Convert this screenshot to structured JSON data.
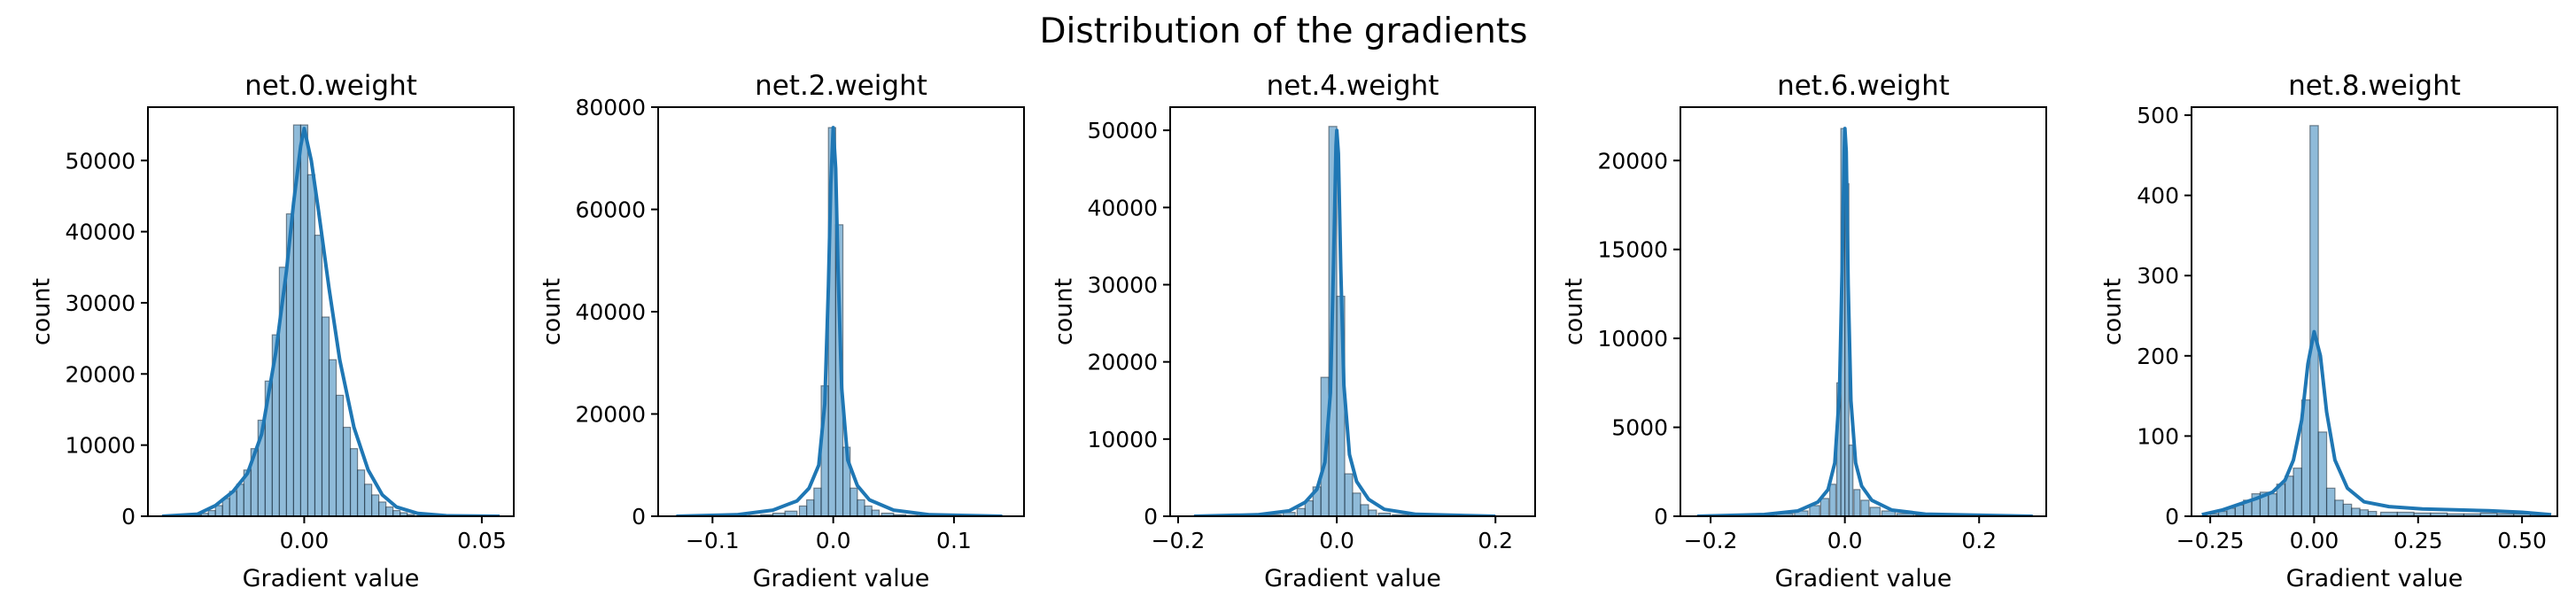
{
  "suptitle": "Distribution of the gradients",
  "chart_data": [
    {
      "type": "histogram",
      "title": "net.0.weight",
      "xlabel": "Gradient value",
      "ylabel": "count",
      "xlim": [
        -0.044,
        0.059
      ],
      "ylim": [
        0,
        57500
      ],
      "xticks": [
        0.0,
        0.05
      ],
      "xtick_labels": [
        "0.00",
        "0.05"
      ],
      "yticks": [
        0,
        10000,
        20000,
        30000,
        40000,
        50000
      ],
      "ytick_labels": [
        "0",
        "10000",
        "20000",
        "30000",
        "40000",
        "50000"
      ],
      "bins": {
        "centers": [
          -0.03,
          -0.028,
          -0.026,
          -0.024,
          -0.022,
          -0.02,
          -0.018,
          -0.016,
          -0.014,
          -0.012,
          -0.01,
          -0.008,
          -0.006,
          -0.004,
          -0.002,
          0.0,
          0.002,
          0.004,
          0.006,
          0.008,
          0.01,
          0.012,
          0.014,
          0.016,
          0.018,
          0.02,
          0.022,
          0.024,
          0.026,
          0.028,
          0.03,
          0.034,
          0.04
        ],
        "counts": [
          200,
          400,
          800,
          1500,
          2500,
          3500,
          4500,
          6500,
          9500,
          13500,
          19000,
          25500,
          35000,
          42500,
          55000,
          55000,
          48000,
          39500,
          28000,
          22000,
          17000,
          12500,
          9500,
          6500,
          4500,
          3000,
          2000,
          1300,
          800,
          500,
          250,
          100,
          40
        ]
      },
      "kde": {
        "x": [
          -0.04,
          -0.03,
          -0.025,
          -0.02,
          -0.016,
          -0.012,
          -0.008,
          -0.005,
          -0.003,
          -0.001,
          0.0,
          0.002,
          0.004,
          0.007,
          0.01,
          0.014,
          0.018,
          0.022,
          0.026,
          0.032,
          0.04,
          0.055
        ],
        "y": [
          0,
          300,
          1500,
          3500,
          6000,
          11500,
          23000,
          34500,
          44000,
          52000,
          54500,
          50000,
          43000,
          32000,
          22000,
          12500,
          6500,
          3000,
          1300,
          400,
          80,
          0
        ]
      }
    },
    {
      "type": "histogram",
      "title": "net.2.weight",
      "xlabel": "Gradient value",
      "ylabel": "count",
      "xlim": [
        -0.145,
        0.158
      ],
      "ylim": [
        0,
        80000
      ],
      "xticks": [
        -0.1,
        0.0,
        0.1
      ],
      "xtick_labels": [
        "−0.1",
        "0.0",
        "0.1"
      ],
      "yticks": [
        0,
        20000,
        40000,
        60000,
        80000
      ],
      "ytick_labels": [
        "0",
        "20000",
        "40000",
        "60000",
        "80000"
      ],
      "bins": {
        "centers": [
          -0.065,
          -0.055,
          -0.045,
          -0.035,
          -0.025,
          -0.019,
          -0.013,
          -0.007,
          -0.001,
          0.005,
          0.011,
          0.017,
          0.023,
          0.029,
          0.035,
          0.045,
          0.055,
          0.065
        ],
        "counts": [
          150,
          300,
          600,
          1000,
          2000,
          3200,
          5500,
          25500,
          76000,
          57000,
          13500,
          5500,
          3200,
          2000,
          1200,
          600,
          300,
          150
        ]
      },
      "kde": {
        "x": [
          -0.13,
          -0.08,
          -0.05,
          -0.03,
          -0.02,
          -0.012,
          -0.007,
          -0.004,
          -0.002,
          0.0,
          0.002,
          0.004,
          0.007,
          0.012,
          0.02,
          0.03,
          0.05,
          0.08,
          0.14
        ],
        "y": [
          0,
          300,
          1200,
          3000,
          5500,
          10000,
          22000,
          45000,
          65000,
          76000,
          68000,
          48000,
          25000,
          11000,
          6000,
          3200,
          1200,
          300,
          0
        ]
      }
    },
    {
      "type": "histogram",
      "title": "net.4.weight",
      "xlabel": "Gradient value",
      "ylabel": "count",
      "xlim": [
        -0.21,
        0.25
      ],
      "ylim": [
        0,
        53000
      ],
      "xticks": [
        -0.2,
        0.0,
        0.2
      ],
      "xtick_labels": [
        "−0.2",
        "0.0",
        "0.2"
      ],
      "yticks": [
        0,
        10000,
        20000,
        30000,
        40000,
        50000
      ],
      "ytick_labels": [
        "0",
        "10000",
        "20000",
        "30000",
        "40000",
        "50000"
      ],
      "bins": {
        "centers": [
          -0.1,
          -0.08,
          -0.06,
          -0.045,
          -0.035,
          -0.025,
          -0.015,
          -0.005,
          0.005,
          0.015,
          0.025,
          0.035,
          0.045,
          0.06,
          0.08,
          0.1,
          0.13
        ],
        "counts": [
          100,
          200,
          500,
          1000,
          2000,
          3800,
          18000,
          50500,
          28500,
          5500,
          3000,
          1500,
          800,
          400,
          200,
          100,
          50
        ]
      },
      "kde": {
        "x": [
          -0.18,
          -0.1,
          -0.06,
          -0.04,
          -0.025,
          -0.015,
          -0.008,
          -0.004,
          -0.001,
          0.0,
          0.002,
          0.005,
          0.009,
          0.016,
          0.025,
          0.04,
          0.06,
          0.1,
          0.2
        ],
        "y": [
          0,
          200,
          700,
          1800,
          3500,
          7000,
          16000,
          33000,
          48000,
          50000,
          47000,
          32000,
          17000,
          8000,
          4500,
          2200,
          900,
          250,
          0
        ]
      }
    },
    {
      "type": "histogram",
      "title": "net.6.weight",
      "xlabel": "Gradient value",
      "ylabel": "count",
      "xlim": [
        -0.245,
        0.3
      ],
      "ylim": [
        0,
        23000
      ],
      "xticks": [
        -0.2,
        0.0,
        0.2
      ],
      "xtick_labels": [
        "−0.2",
        "0.0",
        "0.2"
      ],
      "yticks": [
        0,
        5000,
        10000,
        15000,
        20000
      ],
      "ytick_labels": [
        "0",
        "5000",
        "10000",
        "15000",
        "20000"
      ],
      "bins": {
        "centers": [
          -0.12,
          -0.09,
          -0.065,
          -0.045,
          -0.03,
          -0.018,
          -0.009,
          -0.003,
          0.003,
          0.009,
          0.018,
          0.03,
          0.045,
          0.065,
          0.09,
          0.12,
          0.16
        ],
        "counts": [
          60,
          150,
          300,
          600,
          1000,
          1800,
          7500,
          21800,
          18700,
          4000,
          1500,
          900,
          500,
          300,
          150,
          80,
          40
        ]
      },
      "kde": {
        "x": [
          -0.22,
          -0.12,
          -0.07,
          -0.04,
          -0.025,
          -0.015,
          -0.008,
          -0.004,
          -0.001,
          0.0,
          0.002,
          0.005,
          0.009,
          0.016,
          0.025,
          0.04,
          0.07,
          0.12,
          0.28
        ],
        "y": [
          0,
          100,
          300,
          800,
          1500,
          3000,
          7000,
          14000,
          20500,
          21800,
          20500,
          13000,
          6500,
          3000,
          1700,
          900,
          350,
          120,
          0
        ]
      }
    },
    {
      "type": "histogram",
      "title": "net.8.weight",
      "xlabel": "Gradient value",
      "ylabel": "count",
      "xlim": [
        -0.295,
        0.585
      ],
      "ylim": [
        0,
        510
      ],
      "xticks": [
        -0.25,
        0.0,
        0.25,
        0.5
      ],
      "xtick_labels": [
        "−0.25",
        "0.00",
        "0.25",
        "0.50"
      ],
      "yticks": [
        0,
        100,
        200,
        300,
        400,
        500
      ],
      "ytick_labels": [
        "0",
        "100",
        "200",
        "300",
        "400",
        "500"
      ],
      "bins": {
        "centers": [
          -0.24,
          -0.22,
          -0.2,
          -0.18,
          -0.16,
          -0.14,
          -0.12,
          -0.1,
          -0.08,
          -0.06,
          -0.04,
          -0.02,
          0.0,
          0.02,
          0.04,
          0.06,
          0.08,
          0.1,
          0.12,
          0.14,
          0.18,
          0.22,
          0.26,
          0.3,
          0.34,
          0.38,
          0.42,
          0.46,
          0.5,
          0.54
        ],
        "counts": [
          3,
          6,
          10,
          14,
          20,
          28,
          30,
          28,
          40,
          50,
          60,
          145,
          487,
          105,
          35,
          20,
          15,
          10,
          8,
          6,
          5,
          5,
          4,
          4,
          3,
          3,
          4,
          3,
          3,
          2
        ]
      },
      "kde": {
        "x": [
          -0.27,
          -0.22,
          -0.18,
          -0.14,
          -0.1,
          -0.07,
          -0.05,
          -0.03,
          -0.015,
          0.0,
          0.015,
          0.03,
          0.05,
          0.08,
          0.12,
          0.18,
          0.26,
          0.34,
          0.42,
          0.5,
          0.57
        ],
        "y": [
          2,
          8,
          15,
          22,
          30,
          45,
          70,
          120,
          190,
          230,
          200,
          130,
          70,
          35,
          18,
          12,
          9,
          8,
          7,
          5,
          2
        ]
      }
    }
  ]
}
